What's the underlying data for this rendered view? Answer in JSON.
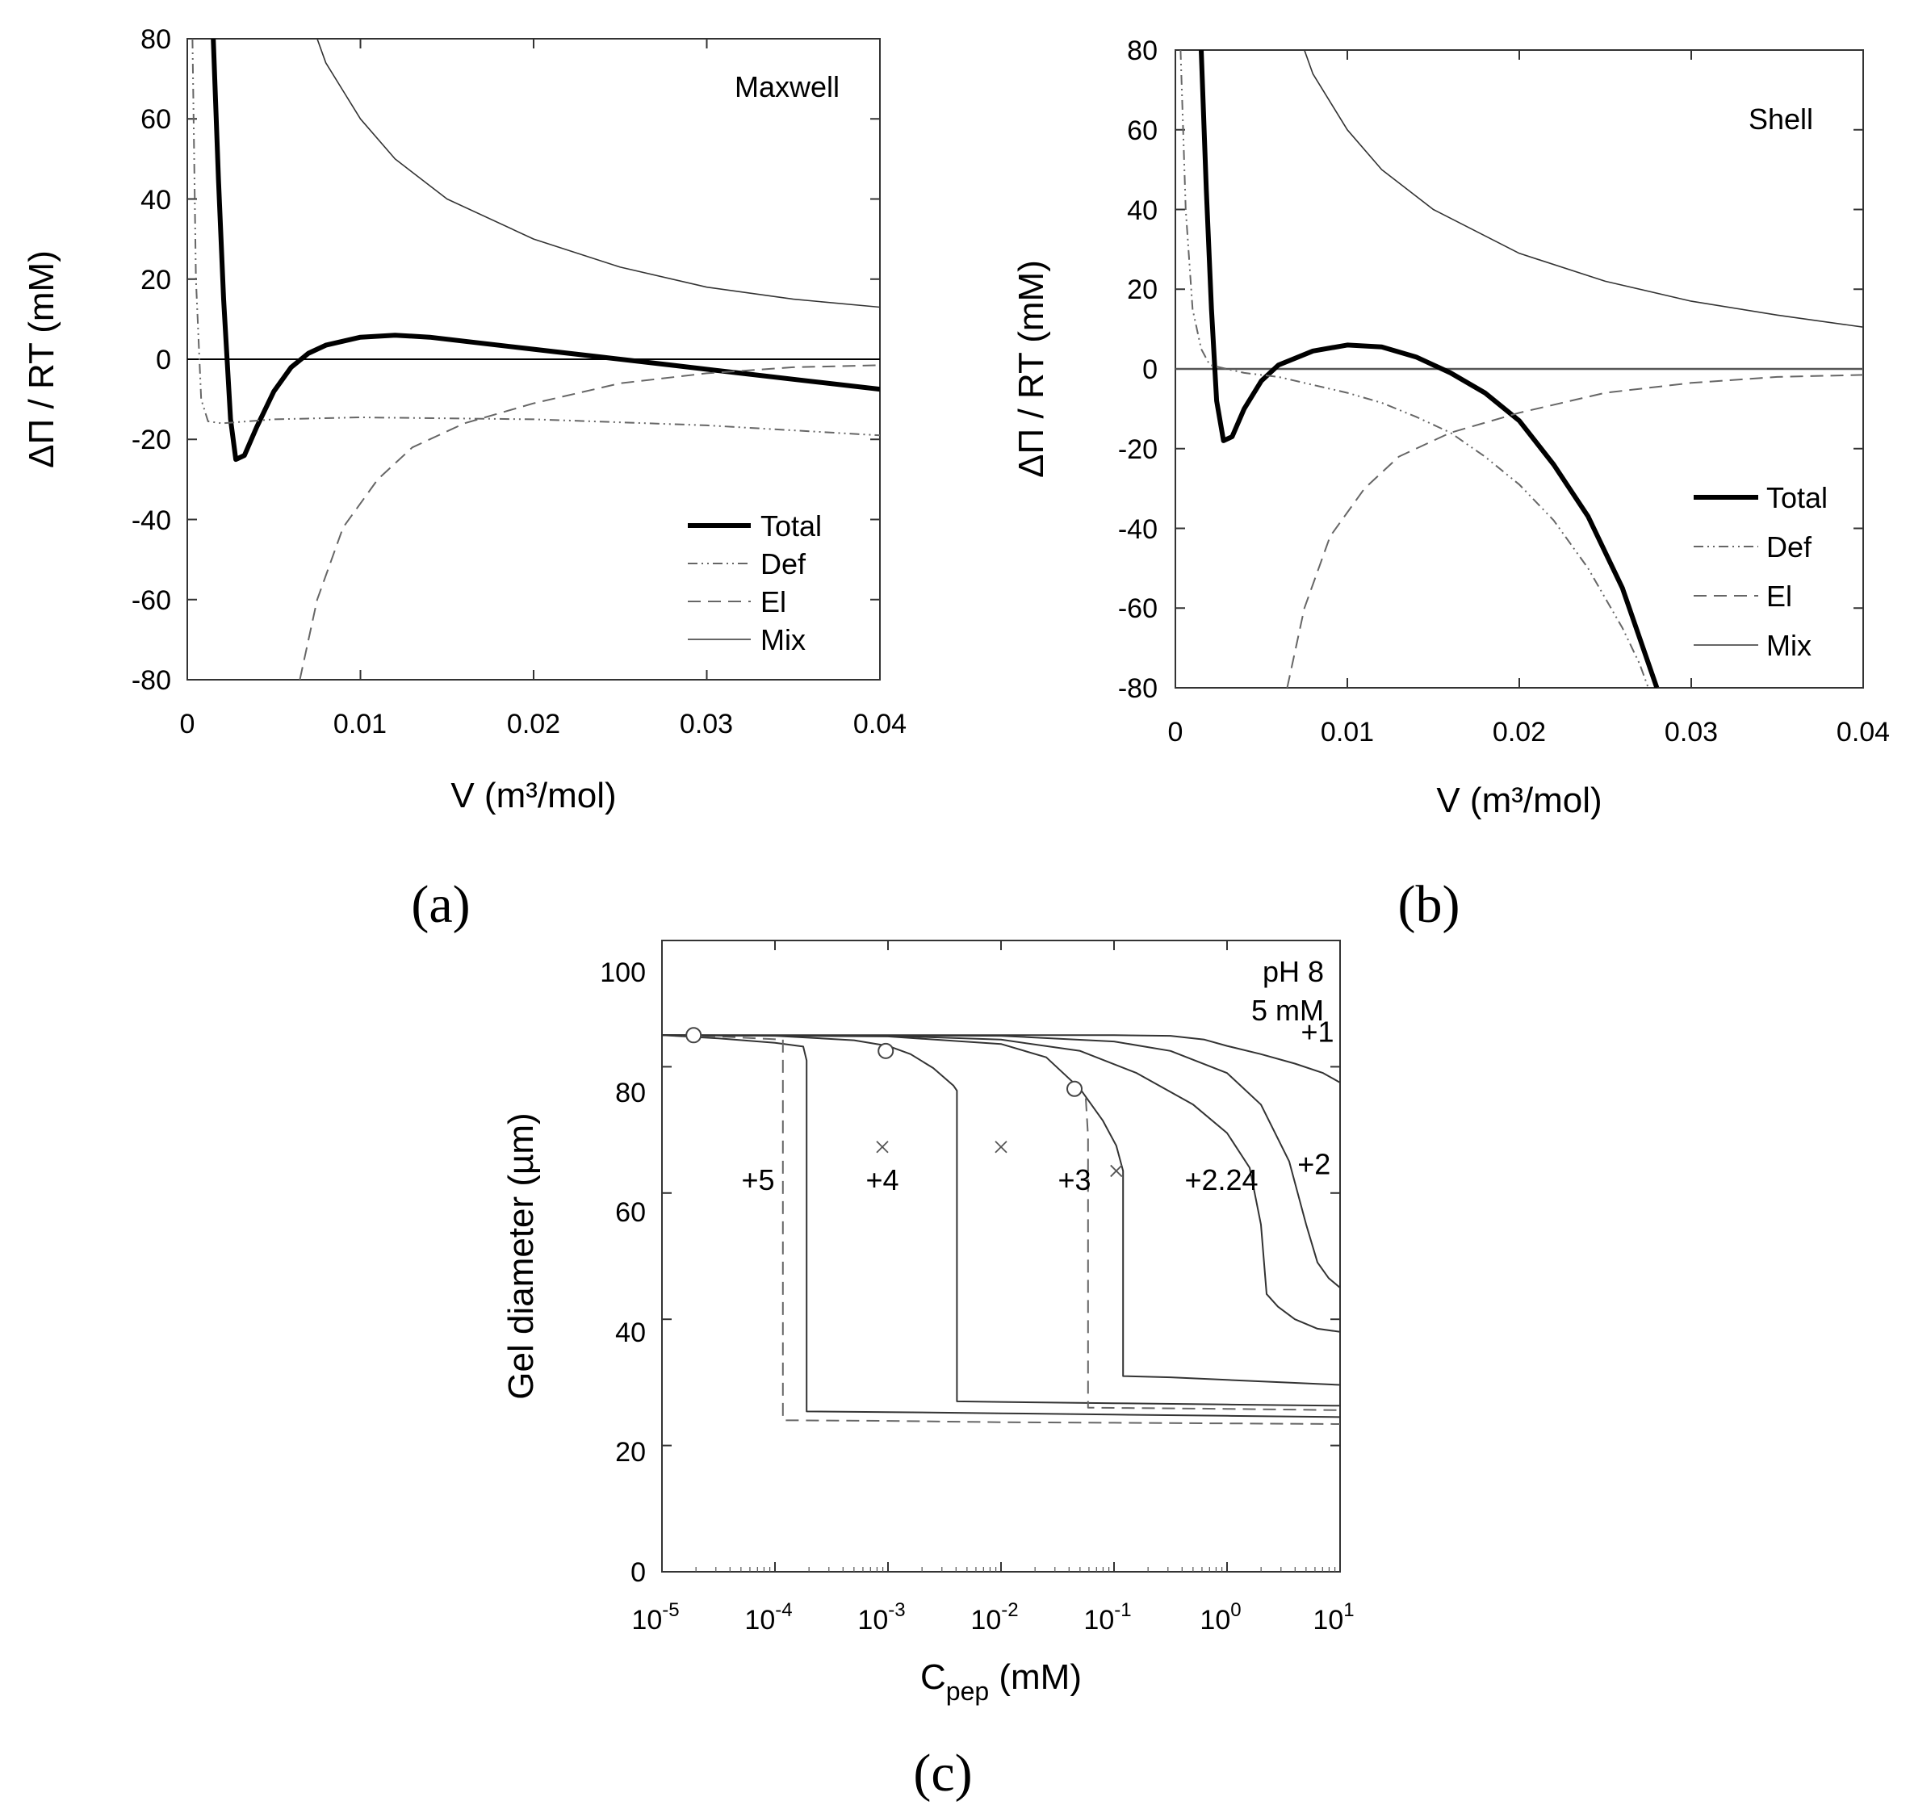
{
  "chart_data": [
    {
      "id": "a",
      "type": "line",
      "panel_label": "(a)",
      "annotation": "Maxwell",
      "xlabel": "V (m³/mol)",
      "ylabel": "ΔΠ / RT (mM)",
      "xlim": [
        0,
        0.04
      ],
      "ylim": [
        -80,
        80
      ],
      "x_ticks": [
        "0",
        "0.01",
        "0.02",
        "0.03",
        "0.04"
      ],
      "y_ticks": [
        "80",
        "60",
        "40",
        "20",
        "0",
        "-20",
        "-40",
        "-60",
        "-80"
      ],
      "legend": [
        "Total",
        "Def",
        "El",
        "Mix"
      ],
      "legend_position": "bottom-right",
      "series": [
        {
          "name": "Total",
          "style": "thick-solid",
          "points": [
            [
              0.0015,
              80
            ],
            [
              0.0018,
              45
            ],
            [
              0.0021,
              15
            ],
            [
              0.0025,
              -15
            ],
            [
              0.0028,
              -25
            ],
            [
              0.0033,
              -24
            ],
            [
              0.004,
              -17
            ],
            [
              0.005,
              -8
            ],
            [
              0.006,
              -2
            ],
            [
              0.007,
              1.5
            ],
            [
              0.008,
              3.5
            ],
            [
              0.01,
              5.5
            ],
            [
              0.012,
              6
            ],
            [
              0.014,
              5.5
            ],
            [
              0.016,
              4.5
            ],
            [
              0.02,
              2.5
            ],
            [
              0.024,
              0.5
            ],
            [
              0.028,
              -1.5
            ],
            [
              0.032,
              -3.5
            ],
            [
              0.036,
              -5.5
            ],
            [
              0.04,
              -7.5
            ]
          ]
        },
        {
          "name": "Def",
          "style": "dash-dot",
          "points": [
            [
              0.0003,
              80
            ],
            [
              0.0005,
              20
            ],
            [
              0.0008,
              -10
            ],
            [
              0.0012,
              -15.5
            ],
            [
              0.002,
              -16
            ],
            [
              0.005,
              -15
            ],
            [
              0.01,
              -14.5
            ],
            [
              0.02,
              -15
            ],
            [
              0.03,
              -16.5
            ],
            [
              0.04,
              -19
            ]
          ]
        },
        {
          "name": "El",
          "style": "dashed",
          "points": [
            [
              0.0065,
              -80
            ],
            [
              0.0075,
              -60
            ],
            [
              0.009,
              -42
            ],
            [
              0.011,
              -30
            ],
            [
              0.013,
              -22
            ],
            [
              0.016,
              -16
            ],
            [
              0.02,
              -11
            ],
            [
              0.025,
              -6
            ],
            [
              0.03,
              -3.5
            ],
            [
              0.035,
              -2
            ],
            [
              0.04,
              -1.5
            ]
          ]
        },
        {
          "name": "Mix",
          "style": "thin-solid",
          "points": [
            [
              0.0075,
              80
            ],
            [
              0.008,
              74
            ],
            [
              0.009,
              67
            ],
            [
              0.01,
              60
            ],
            [
              0.012,
              50
            ],
            [
              0.015,
              40
            ],
            [
              0.02,
              30
            ],
            [
              0.025,
              23
            ],
            [
              0.03,
              18
            ],
            [
              0.035,
              15
            ],
            [
              0.04,
              13
            ]
          ]
        }
      ]
    },
    {
      "id": "b",
      "type": "line",
      "panel_label": "(b)",
      "annotation": "Shell",
      "xlabel": "V (m³/mol)",
      "ylabel": "ΔΠ / RT (mM)",
      "xlim": [
        0,
        0.04
      ],
      "ylim": [
        -80,
        80
      ],
      "x_ticks": [
        "0",
        "0.01",
        "0.02",
        "0.03",
        "0.04"
      ],
      "y_ticks": [
        "80",
        "60",
        "40",
        "20",
        "0",
        "-20",
        "-40",
        "-60",
        "-80"
      ],
      "legend": [
        "Total",
        "Def",
        "El",
        "Mix"
      ],
      "legend_position": "bottom-right",
      "series": [
        {
          "name": "Total",
          "style": "thick-solid",
          "points": [
            [
              0.0015,
              80
            ],
            [
              0.0018,
              45
            ],
            [
              0.0021,
              15
            ],
            [
              0.0024,
              -8
            ],
            [
              0.0028,
              -18
            ],
            [
              0.0033,
              -17
            ],
            [
              0.004,
              -10
            ],
            [
              0.005,
              -3
            ],
            [
              0.006,
              1
            ],
            [
              0.008,
              4.5
            ],
            [
              0.01,
              6
            ],
            [
              0.012,
              5.5
            ],
            [
              0.014,
              3
            ],
            [
              0.016,
              -1
            ],
            [
              0.018,
              -6
            ],
            [
              0.02,
              -13
            ],
            [
              0.022,
              -24
            ],
            [
              0.024,
              -37
            ],
            [
              0.026,
              -55
            ],
            [
              0.028,
              -80
            ]
          ]
        },
        {
          "name": "Def",
          "style": "dash-dot",
          "points": [
            [
              0.0003,
              80
            ],
            [
              0.0006,
              40
            ],
            [
              0.001,
              15
            ],
            [
              0.0015,
              5
            ],
            [
              0.002,
              1
            ],
            [
              0.004,
              -1
            ],
            [
              0.006,
              -2
            ],
            [
              0.008,
              -4
            ],
            [
              0.01,
              -6
            ],
            [
              0.012,
              -8.5
            ],
            [
              0.014,
              -12
            ],
            [
              0.016,
              -16
            ],
            [
              0.018,
              -22
            ],
            [
              0.02,
              -29
            ],
            [
              0.022,
              -38
            ],
            [
              0.024,
              -50
            ],
            [
              0.026,
              -65
            ],
            [
              0.027,
              -74
            ],
            [
              0.0275,
              -80
            ]
          ]
        },
        {
          "name": "El",
          "style": "dashed",
          "points": [
            [
              0.0065,
              -80
            ],
            [
              0.0075,
              -60
            ],
            [
              0.009,
              -42
            ],
            [
              0.011,
              -30
            ],
            [
              0.013,
              -22
            ],
            [
              0.016,
              -16
            ],
            [
              0.02,
              -11
            ],
            [
              0.025,
              -6
            ],
            [
              0.03,
              -3.5
            ],
            [
              0.035,
              -2
            ],
            [
              0.04,
              -1.5
            ]
          ]
        },
        {
          "name": "Mix",
          "style": "thin-solid",
          "points": [
            [
              0.0075,
              80
            ],
            [
              0.008,
              74
            ],
            [
              0.009,
              67
            ],
            [
              0.01,
              60
            ],
            [
              0.012,
              50
            ],
            [
              0.015,
              40
            ],
            [
              0.02,
              29
            ],
            [
              0.025,
              22
            ],
            [
              0.03,
              17
            ],
            [
              0.035,
              13.5
            ],
            [
              0.04,
              10.5
            ]
          ]
        }
      ]
    },
    {
      "id": "c",
      "type": "line",
      "panel_label": "(c)",
      "annotation_lines": [
        "pH 8",
        "5 mM"
      ],
      "xlabel_main": "C",
      "xlabel_sub": "pep",
      "xlabel_unit": " (mM)",
      "ylabel": "Gel diameter (µm)",
      "x_scale": "log",
      "xlim_log10": [
        -5,
        1
      ],
      "ylim": [
        0,
        100
      ],
      "x_tick_base": "10",
      "x_tick_exponents": [
        "-5",
        "-4",
        "-3",
        "-2",
        "-1",
        "0",
        "1"
      ],
      "y_ticks": [
        "100",
        "80",
        "60",
        "40",
        "20",
        "0"
      ],
      "series": [
        {
          "name": "+5",
          "label": "+5",
          "style": "solid",
          "label_at": [
            -4.15,
            62
          ],
          "points": [
            [
              -5,
              85
            ],
            [
              -4.5,
              84.5
            ],
            [
              -4.0,
              83.8
            ],
            [
              -3.75,
              83.2
            ],
            [
              -3.72,
              81
            ],
            [
              -3.72,
              25.4
            ],
            [
              -3,
              25.3
            ],
            [
              -2,
              25.1
            ],
            [
              -1,
              24.9
            ],
            [
              0,
              24.7
            ],
            [
              1,
              24.5
            ]
          ]
        },
        {
          "name": "+5 (spinodal)",
          "style": "dashed",
          "points": [
            [
              -5,
              85
            ],
            [
              -4.5,
              84.8
            ],
            [
              -3.93,
              84.3
            ],
            [
              -3.93,
              24
            ],
            [
              -3,
              23.9
            ],
            [
              -2,
              23.7
            ],
            [
              -1,
              23.6
            ],
            [
              0,
              23.5
            ],
            [
              1,
              23.4
            ]
          ]
        },
        {
          "name": "+4",
          "label": "+4",
          "style": "solid",
          "label_at": [
            -3.05,
            62
          ],
          "points": [
            [
              -5,
              85
            ],
            [
              -4,
              84.9
            ],
            [
              -3.3,
              84.2
            ],
            [
              -3,
              83.3
            ],
            [
              -2.8,
              82
            ],
            [
              -2.6,
              79.8
            ],
            [
              -2.42,
              77
            ],
            [
              -2.39,
              76.2
            ],
            [
              -2.39,
              27
            ],
            [
              -2,
              26.9
            ],
            [
              -1,
              26.7
            ],
            [
              0,
              26.5
            ],
            [
              1,
              26.3
            ]
          ]
        },
        {
          "name": "+3",
          "label": "+3",
          "style": "solid",
          "label_at": [
            -1.35,
            62
          ],
          "points": [
            [
              -5,
              85
            ],
            [
              -3,
              84.8
            ],
            [
              -2,
              83.6
            ],
            [
              -1.6,
              81.5
            ],
            [
              -1.3,
              76.5
            ],
            [
              -1.1,
              71.5
            ],
            [
              -0.98,
              67.5
            ],
            [
              -0.92,
              63.5
            ],
            [
              -0.92,
              31
            ],
            [
              -0.5,
              30.8
            ],
            [
              0,
              30.4
            ],
            [
              0.5,
              30
            ],
            [
              1,
              29.6
            ]
          ]
        },
        {
          "name": "+3 (spinodal)",
          "style": "dashed",
          "points": [
            [
              -1.25,
              75
            ],
            [
              -1.23,
              69
            ],
            [
              -1.23,
              26
            ],
            [
              0,
              25.8
            ],
            [
              1,
              25.6
            ]
          ]
        },
        {
          "name": "+2.24",
          "label": "+2.24",
          "style": "solid",
          "label_at": [
            -0.05,
            62
          ],
          "points": [
            [
              -5,
              85
            ],
            [
              -3,
              84.9
            ],
            [
              -2,
              84.3
            ],
            [
              -1.3,
              82.5
            ],
            [
              -0.8,
              79
            ],
            [
              -0.3,
              74
            ],
            [
              0,
              69.5
            ],
            [
              0.2,
              64
            ],
            [
              0.3,
              55
            ],
            [
              0.35,
              44
            ],
            [
              0.45,
              42
            ],
            [
              0.6,
              40
            ],
            [
              0.8,
              38.5
            ],
            [
              1,
              38
            ]
          ]
        },
        {
          "name": "+2",
          "label": "+2",
          "style": "solid",
          "label_at": [
            0.77,
            64.5
          ],
          "points": [
            [
              -5,
              85
            ],
            [
              -2,
              84.9
            ],
            [
              -1,
              84
            ],
            [
              -0.5,
              82.5
            ],
            [
              0,
              79
            ],
            [
              0.3,
              74
            ],
            [
              0.55,
              65
            ],
            [
              0.7,
              55
            ],
            [
              0.8,
              49
            ],
            [
              0.9,
              46.5
            ],
            [
              1,
              45
            ]
          ]
        },
        {
          "name": "+1",
          "label": "+1",
          "style": "solid",
          "label_at": [
            0.8,
            85.5
          ],
          "points": [
            [
              -5,
              85
            ],
            [
              -1,
              85
            ],
            [
              -0.5,
              84.9
            ],
            [
              -0.2,
              84.3
            ],
            [
              0,
              83.3
            ],
            [
              0.3,
              82
            ],
            [
              0.6,
              80.5
            ],
            [
              0.85,
              79
            ],
            [
              1,
              77.5
            ]
          ]
        }
      ],
      "markers": [
        {
          "symbol": "circle",
          "points": [
            [
              -4.72,
              85
            ],
            [
              -3.02,
              82.5
            ],
            [
              -1.35,
              76.5
            ]
          ]
        },
        {
          "symbol": "cross",
          "points": [
            [
              -3.05,
              67.3
            ],
            [
              -2.0,
              67.3
            ],
            [
              -0.98,
              63.5
            ]
          ]
        }
      ]
    }
  ]
}
